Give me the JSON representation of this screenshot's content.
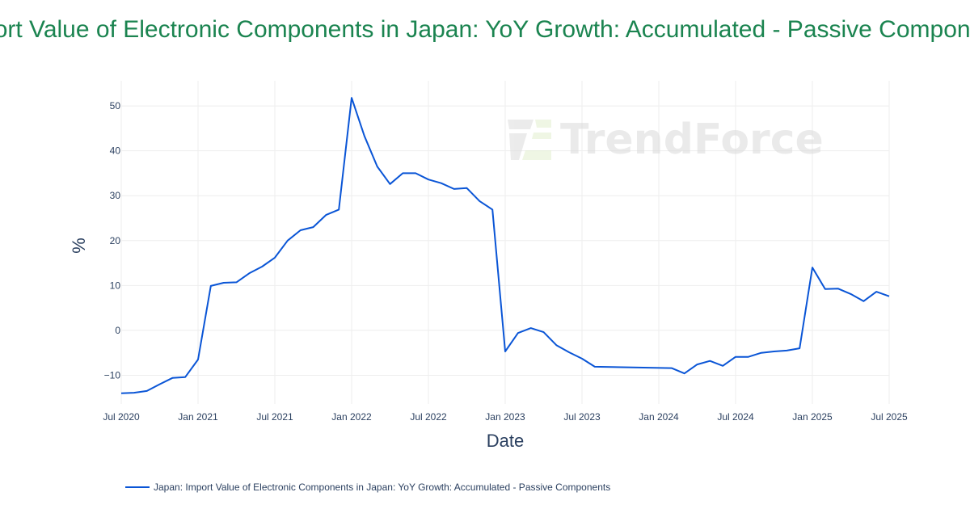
{
  "watermark": "TrendForce",
  "colors": {
    "line": "#0a55d6",
    "title": "#1b8450",
    "grid": "#eeeeee"
  },
  "chart_data": {
    "type": "line",
    "title": "Import Value of Electronic Components in Japan: YoY Growth: Accumulated - Passive Components",
    "xlabel": "Date",
    "ylabel": "%",
    "xlim": [
      "2020-07",
      "2025-07"
    ],
    "ylim": [
      -16.4,
      55.6
    ],
    "grid": true,
    "legend_position": "bottom-left",
    "x_ticks": [
      {
        "value": "2020-07",
        "label": "Jul 2020"
      },
      {
        "value": "2021-01",
        "label": "Jan 2021"
      },
      {
        "value": "2021-07",
        "label": "Jul 2021"
      },
      {
        "value": "2022-01",
        "label": "Jan 2022"
      },
      {
        "value": "2022-07",
        "label": "Jul 2022"
      },
      {
        "value": "2023-01",
        "label": "Jan 2023"
      },
      {
        "value": "2023-07",
        "label": "Jul 2023"
      },
      {
        "value": "2024-01",
        "label": "Jan 2024"
      },
      {
        "value": "2024-07",
        "label": "Jul 2024"
      },
      {
        "value": "2025-01",
        "label": "Jan 2025"
      },
      {
        "value": "2025-07",
        "label": "Jul 2025"
      }
    ],
    "y_ticks": [
      {
        "value": -10,
        "label": "−10"
      },
      {
        "value": 0,
        "label": "0"
      },
      {
        "value": 10,
        "label": "10"
      },
      {
        "value": 20,
        "label": "20"
      },
      {
        "value": 30,
        "label": "30"
      },
      {
        "value": 40,
        "label": "40"
      },
      {
        "value": 50,
        "label": "50"
      }
    ],
    "series": [
      {
        "name": "Japan: Import Value of Electronic Components in Japan: YoY Growth: Accumulated - Passive Components",
        "x": [
          "2020-07",
          "2020-08",
          "2020-09",
          "2020-10",
          "2020-11",
          "2020-12",
          "2021-01",
          "2021-02",
          "2021-03",
          "2021-04",
          "2021-05",
          "2021-06",
          "2021-07",
          "2021-08",
          "2021-09",
          "2021-10",
          "2021-11",
          "2021-12",
          "2022-01",
          "2022-02",
          "2022-03",
          "2022-04",
          "2022-05",
          "2022-06",
          "2022-07",
          "2022-08",
          "2022-09",
          "2022-10",
          "2022-11",
          "2022-12",
          "2023-01",
          "2023-02",
          "2023-03",
          "2023-04",
          "2023-05",
          "2023-06",
          "2023-07",
          "2023-08",
          "2024-02",
          "2024-03",
          "2024-04",
          "2024-05",
          "2024-06",
          "2024-07",
          "2024-08",
          "2024-09",
          "2024-10",
          "2024-11",
          "2024-12",
          "2025-01",
          "2025-02",
          "2025-03",
          "2025-04",
          "2025-05",
          "2025-06",
          "2025-07"
        ],
        "y": [
          -14.0,
          -13.9,
          -13.5,
          -12.0,
          -10.6,
          -10.4,
          -6.5,
          9.9,
          10.6,
          10.7,
          12.7,
          14.2,
          16.2,
          20.0,
          22.3,
          23.0,
          25.7,
          26.9,
          51.8,
          43.3,
          36.5,
          32.6,
          35.0,
          35.0,
          33.6,
          32.8,
          31.5,
          31.7,
          28.8,
          26.9,
          -4.7,
          -0.6,
          0.5,
          -0.4,
          -3.3,
          -4.9,
          -6.3,
          -8.1,
          -8.4,
          -9.6,
          -7.6,
          -6.8,
          -7.9,
          -5.9,
          -5.9,
          -5.0,
          -4.7,
          -4.5,
          -4.0,
          14.0,
          9.2,
          9.3,
          8.1,
          6.5,
          8.6,
          7.6
        ]
      }
    ]
  }
}
